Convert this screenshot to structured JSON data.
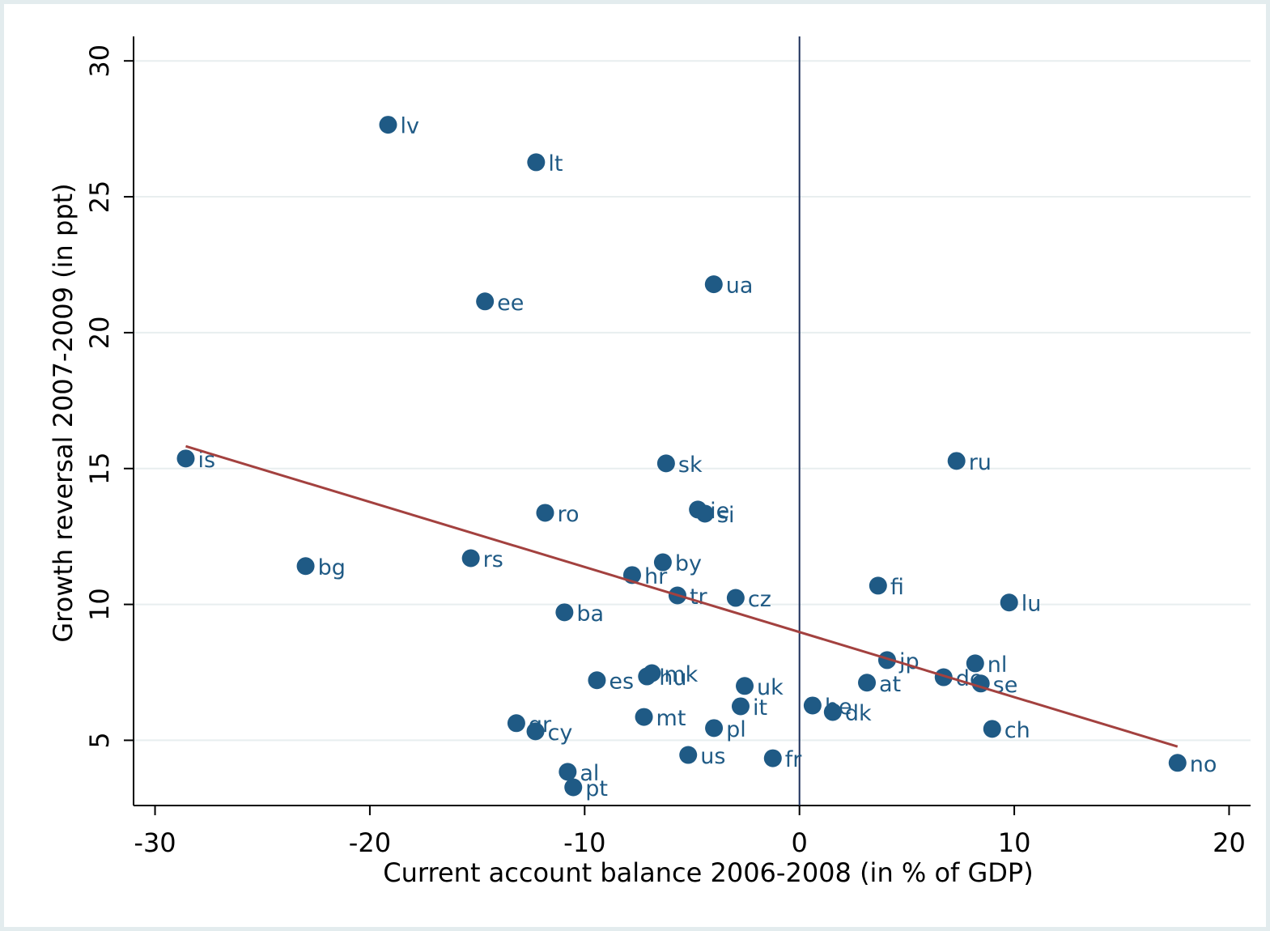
{
  "chart_data": {
    "type": "scatter",
    "x_label": "Current account balance 2006-2008 (in % of GDP)",
    "y_label": "Growth reversal 2007-2009 (in ppt)",
    "labels": [
      "lv",
      "lt",
      "ua",
      "ee",
      "is",
      "sk",
      "ru",
      "ro",
      "ie",
      "si",
      "bg",
      "rs",
      "by",
      "hr",
      "tr",
      "cz",
      "fi",
      "lu",
      "ba",
      "jp",
      "nl",
      "de",
      "se",
      "at",
      "es",
      "mk",
      "hu",
      "uk",
      "it",
      "be",
      "dk",
      "ch",
      "mt",
      "gr",
      "cy",
      "pl",
      "us",
      "fr",
      "al",
      "pt",
      "no"
    ],
    "x": [
      -19.15,
      -12.26,
      -3.99,
      -14.64,
      -28.57,
      -6.21,
      7.31,
      -11.84,
      -4.73,
      -4.4,
      -22.99,
      -15.3,
      -6.36,
      -7.79,
      -5.68,
      -2.97,
      3.66,
      9.76,
      -10.94,
      4.08,
      8.18,
      6.71,
      8.44,
      3.14,
      -9.43,
      -6.87,
      -7.1,
      -2.55,
      -2.74,
      0.61,
      1.55,
      8.97,
      -7.24,
      -13.18,
      -12.29,
      -3.98,
      -5.18,
      -1.24,
      -10.79,
      -10.53,
      17.6
    ],
    "y": [
      27.65,
      26.27,
      21.78,
      21.15,
      15.37,
      15.19,
      15.28,
      13.37,
      13.49,
      13.34,
      11.41,
      11.7,
      11.55,
      11.08,
      10.33,
      10.24,
      10.69,
      10.07,
      9.71,
      7.95,
      7.83,
      7.32,
      7.09,
      7.12,
      7.21,
      7.47,
      7.35,
      7.0,
      6.25,
      6.28,
      6.04,
      5.42,
      5.86,
      5.63,
      5.33,
      5.45,
      4.46,
      4.34,
      3.84,
      3.27,
      4.17
    ],
    "color": "#1f5a85",
    "fit": {
      "x": [
        -28.57,
        17.6
      ],
      "y": [
        15.82,
        4.77
      ],
      "color": "#a3413f"
    },
    "xline": 0,
    "xlim": [
      -31,
      21
    ],
    "ylim": [
      2.6,
      30.9
    ],
    "xticks": [
      -30,
      -20,
      -10,
      0,
      10,
      20
    ],
    "yticks": [
      5,
      10,
      15,
      20,
      25,
      30
    ],
    "grid": true
  }
}
